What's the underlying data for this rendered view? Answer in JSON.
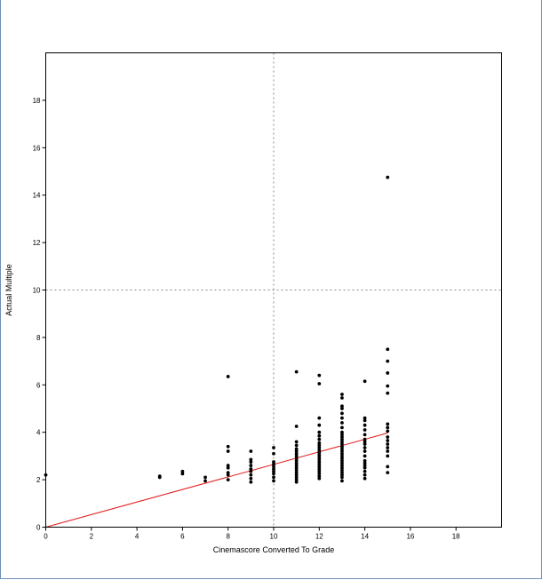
{
  "chart_data": {
    "type": "scatter",
    "title": "",
    "xlabel": "Cinemascore Converted To Grade",
    "ylabel": "Actual Multiple",
    "xlim": [
      0,
      20
    ],
    "ylim": [
      0,
      20
    ],
    "xticks": [
      0,
      2,
      4,
      6,
      8,
      10,
      12,
      14,
      16,
      18
    ],
    "yticks": [
      0,
      2,
      4,
      6,
      8,
      10,
      12,
      14,
      16,
      18
    ],
    "grid": false,
    "reference_lines": {
      "x": 10,
      "y": 10,
      "style": "dotted",
      "color": "#888888"
    },
    "series": [
      {
        "points": [
          [
            0,
            2.2
          ],
          [
            5,
            2.1
          ],
          [
            5,
            2.15
          ],
          [
            6,
            2.25
          ],
          [
            6,
            2.35
          ],
          [
            7,
            1.95
          ],
          [
            7,
            2.1
          ],
          [
            8,
            2.0
          ],
          [
            8,
            2.2
          ],
          [
            8,
            2.3
          ],
          [
            8,
            2.5
          ],
          [
            8,
            2.6
          ],
          [
            8,
            3.2
          ],
          [
            8,
            3.4
          ],
          [
            8,
            6.35
          ],
          [
            9,
            1.9
          ],
          [
            9,
            2.05
          ],
          [
            9,
            2.2
          ],
          [
            9,
            2.35
          ],
          [
            9,
            2.45
          ],
          [
            9,
            2.6
          ],
          [
            9,
            2.75
          ],
          [
            9,
            2.85
          ],
          [
            9,
            3.2
          ],
          [
            10,
            1.95
          ],
          [
            10,
            2.1
          ],
          [
            10,
            2.25
          ],
          [
            10,
            2.35
          ],
          [
            10,
            2.45
          ],
          [
            10,
            2.55
          ],
          [
            10,
            2.65
          ],
          [
            10,
            2.75
          ],
          [
            10,
            3.1
          ],
          [
            10,
            3.35
          ],
          [
            11,
            1.9
          ],
          [
            11,
            2.0
          ],
          [
            11,
            2.1
          ],
          [
            11,
            2.2
          ],
          [
            11,
            2.3
          ],
          [
            11,
            2.4
          ],
          [
            11,
            2.5
          ],
          [
            11,
            2.6
          ],
          [
            11,
            2.7
          ],
          [
            11,
            2.8
          ],
          [
            11,
            2.9
          ],
          [
            11,
            3.0
          ],
          [
            11,
            3.1
          ],
          [
            11,
            3.2
          ],
          [
            11,
            3.3
          ],
          [
            11,
            3.45
          ],
          [
            11,
            3.6
          ],
          [
            11,
            4.25
          ],
          [
            11,
            6.55
          ],
          [
            12,
            2.05
          ],
          [
            12,
            2.15
          ],
          [
            12,
            2.25
          ],
          [
            12,
            2.35
          ],
          [
            12,
            2.45
          ],
          [
            12,
            2.55
          ],
          [
            12,
            2.65
          ],
          [
            12,
            2.75
          ],
          [
            12,
            2.85
          ],
          [
            12,
            2.95
          ],
          [
            12,
            3.05
          ],
          [
            12,
            3.15
          ],
          [
            12,
            3.25
          ],
          [
            12,
            3.35
          ],
          [
            12,
            3.45
          ],
          [
            12,
            3.55
          ],
          [
            12,
            3.7
          ],
          [
            12,
            3.85
          ],
          [
            12,
            4.0
          ],
          [
            12,
            4.3
          ],
          [
            12,
            4.6
          ],
          [
            12,
            6.05
          ],
          [
            12,
            6.4
          ],
          [
            13,
            1.95
          ],
          [
            13,
            2.1
          ],
          [
            13,
            2.2
          ],
          [
            13,
            2.3
          ],
          [
            13,
            2.4
          ],
          [
            13,
            2.5
          ],
          [
            13,
            2.6
          ],
          [
            13,
            2.7
          ],
          [
            13,
            2.8
          ],
          [
            13,
            2.9
          ],
          [
            13,
            3.0
          ],
          [
            13,
            3.1
          ],
          [
            13,
            3.2
          ],
          [
            13,
            3.3
          ],
          [
            13,
            3.4
          ],
          [
            13,
            3.5
          ],
          [
            13,
            3.6
          ],
          [
            13,
            3.7
          ],
          [
            13,
            3.8
          ],
          [
            13,
            3.9
          ],
          [
            13,
            4.0
          ],
          [
            13,
            4.2
          ],
          [
            13,
            4.4
          ],
          [
            13,
            4.6
          ],
          [
            13,
            4.8
          ],
          [
            13,
            5.0
          ],
          [
            13,
            5.1
          ],
          [
            13,
            5.45
          ],
          [
            13,
            5.6
          ],
          [
            14,
            2.05
          ],
          [
            14,
            2.2
          ],
          [
            14,
            2.35
          ],
          [
            14,
            2.5
          ],
          [
            14,
            2.6
          ],
          [
            14,
            2.7
          ],
          [
            14,
            2.8
          ],
          [
            14,
            3.0
          ],
          [
            14,
            3.2
          ],
          [
            14,
            3.35
          ],
          [
            14,
            3.5
          ],
          [
            14,
            3.6
          ],
          [
            14,
            3.7
          ],
          [
            14,
            3.9
          ],
          [
            14,
            4.1
          ],
          [
            14,
            4.3
          ],
          [
            14,
            4.5
          ],
          [
            14,
            4.6
          ],
          [
            14,
            6.15
          ],
          [
            15,
            2.3
          ],
          [
            15,
            2.55
          ],
          [
            15,
            3.0
          ],
          [
            15,
            3.2
          ],
          [
            15,
            3.35
          ],
          [
            15,
            3.5
          ],
          [
            15,
            3.65
          ],
          [
            15,
            3.8
          ],
          [
            15,
            4.05
          ],
          [
            15,
            4.2
          ],
          [
            15,
            4.35
          ],
          [
            15,
            5.65
          ],
          [
            15,
            5.95
          ],
          [
            15,
            6.5
          ],
          [
            15,
            7.0
          ],
          [
            15,
            7.5
          ],
          [
            15,
            14.75
          ]
        ],
        "color": "#000000"
      }
    ],
    "fit_line": {
      "x": [
        0,
        15
      ],
      "y": [
        0,
        3.97
      ],
      "color": "#e31a1c"
    }
  }
}
